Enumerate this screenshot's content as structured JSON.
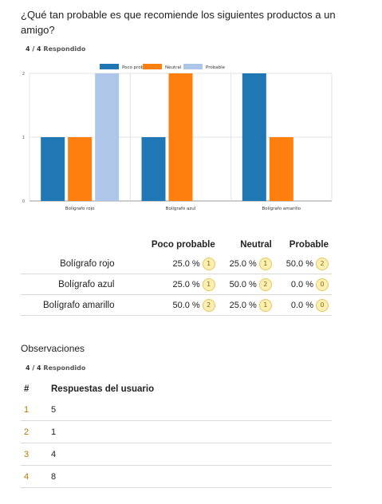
{
  "question1": {
    "title": "¿Qué tan probable es que recomiende los siguientes productos a un amigo?",
    "answered_count": "4 / 4",
    "answered_label": "Respondido"
  },
  "chart_data": {
    "type": "bar",
    "categories": [
      "Bolígrafo rojo",
      "Bolígrafo azul",
      "Bolígrafo amarillo"
    ],
    "series": [
      {
        "name": "Poco probable",
        "color": "#1f77b4",
        "values": [
          1,
          1,
          2
        ]
      },
      {
        "name": "Neutral",
        "color": "#ff7f0e",
        "values": [
          1,
          2,
          1
        ]
      },
      {
        "name": "Probable",
        "color": "#aec7e8",
        "values": [
          2,
          0,
          0
        ]
      }
    ],
    "yticks": [
      "0",
      "1",
      "2"
    ],
    "ylim": [
      0,
      2
    ],
    "grid": true,
    "legend": "top"
  },
  "matrix": {
    "columns": [
      "Poco probable",
      "Neutral",
      "Probable"
    ],
    "rows": [
      {
        "label": "Bolígrafo rojo",
        "cells": [
          {
            "pct": "25.0 %",
            "n": "1"
          },
          {
            "pct": "25.0 %",
            "n": "1"
          },
          {
            "pct": "50.0 %",
            "n": "2"
          }
        ]
      },
      {
        "label": "Bolígrafo azul",
        "cells": [
          {
            "pct": "25.0 %",
            "n": "1"
          },
          {
            "pct": "50.0 %",
            "n": "2"
          },
          {
            "pct": "0.0 %",
            "n": "0"
          }
        ]
      },
      {
        "label": "Bolígrafo amarillo",
        "cells": [
          {
            "pct": "50.0 %",
            "n": "2"
          },
          {
            "pct": "25.0 %",
            "n": "1"
          },
          {
            "pct": "0.0 %",
            "n": "0"
          }
        ]
      }
    ]
  },
  "question2": {
    "title": "Observaciones",
    "answered_count": "4 / 4",
    "answered_label": "Respondido"
  },
  "responses": {
    "col_num": "#",
    "col_answer": "Respuestas del usuario",
    "rows": [
      {
        "num": "1",
        "answer": "5"
      },
      {
        "num": "2",
        "answer": "1"
      },
      {
        "num": "3",
        "answer": "4"
      },
      {
        "num": "4",
        "answer": "8"
      }
    ]
  }
}
